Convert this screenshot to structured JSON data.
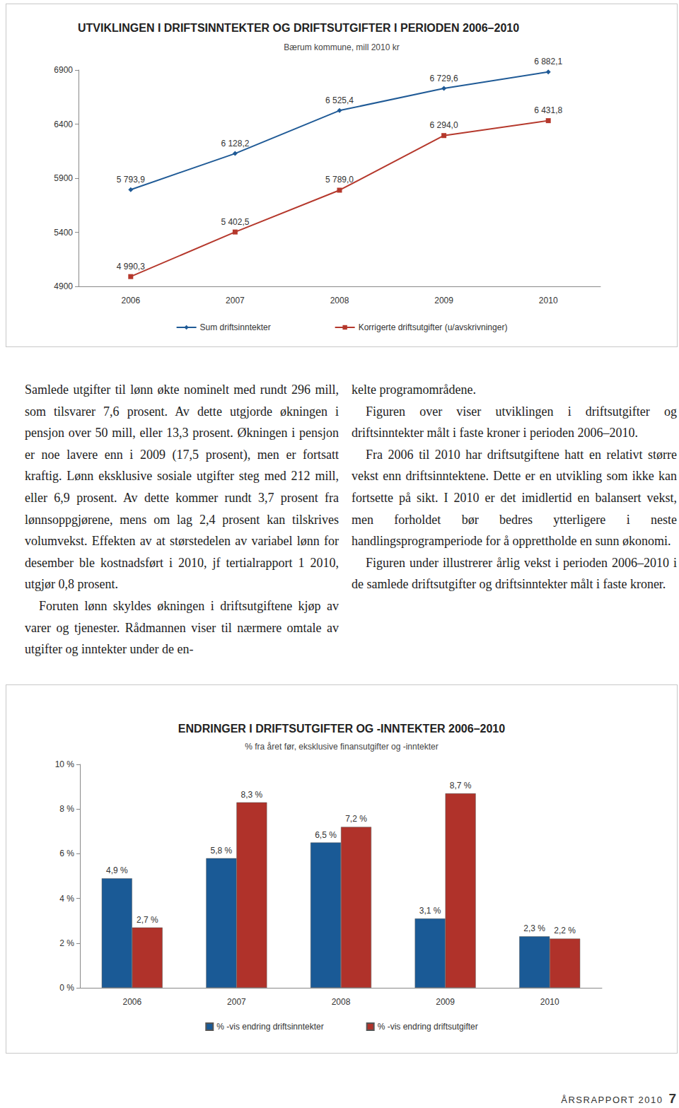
{
  "chart_data": [
    {
      "type": "line",
      "title": "UTVIKLINGEN I DRIFTSINNTEKTER OG DRIFTSUTGIFTER I PERIODEN 2006–2010",
      "subtitle": "Bærum kommune, mill 2010 kr",
      "categories": [
        "2006",
        "2007",
        "2008",
        "2009",
        "2010"
      ],
      "series": [
        {
          "name": "Sum driftsinntekter",
          "color": "#1f5a96",
          "marker": "diamond",
          "values": [
            5793.9,
            6128.2,
            6525.4,
            6729.6,
            6882.1
          ],
          "value_labels": [
            "5 793,9",
            "6 128,2",
            "6 525,4",
            "6 729,6",
            "6 882,1"
          ]
        },
        {
          "name": "Korrigerte driftsutgifter (u/avskrivninger)",
          "color": "#b5382c",
          "marker": "square",
          "values": [
            4990.3,
            5402.5,
            5789.0,
            6294.0,
            6431.8
          ],
          "value_labels": [
            "4 990,3",
            "5 402,5",
            "5 789,0",
            "6 294,0",
            "6 431,8"
          ]
        }
      ],
      "ylim": [
        4900,
        6900
      ],
      "yticks": [
        4900,
        5400,
        5900,
        6400,
        6900
      ],
      "grid": false,
      "legend": "bottom",
      "data_labels": true
    },
    {
      "type": "bar",
      "title": "ENDRINGER I DRIFTSUTGIFTER OG -INNTEKTER 2006–2010",
      "subtitle": "% fra året før, eksklusive finansutgifter og -inntekter",
      "categories": [
        "2006",
        "2007",
        "2008",
        "2009",
        "2010"
      ],
      "series": [
        {
          "name": "% -vis endring driftsinntekter",
          "color": "#1a5a96",
          "values": [
            4.9,
            5.8,
            6.5,
            3.1,
            2.3
          ],
          "value_labels": [
            "4,9 %",
            "5,8 %",
            "6,5 %",
            "3,1 %",
            "2,3 %"
          ]
        },
        {
          "name": "% -vis endring driftsutgifter",
          "color": "#b0322a",
          "values": [
            2.7,
            8.3,
            7.2,
            8.7,
            2.2
          ],
          "value_labels": [
            "2,7 %",
            "8,3 %",
            "7,2 %",
            "8,7 %",
            "2,2 %"
          ]
        }
      ],
      "ylim": [
        0,
        10
      ],
      "yticks": [
        {
          "value": 0,
          "label": "0 %"
        },
        {
          "value": 2,
          "label": "2 %"
        },
        {
          "value": 4,
          "label": "4 %"
        },
        {
          "value": 6,
          "label": "6 %"
        },
        {
          "value": 8,
          "label": "8 %"
        },
        {
          "value": 10,
          "label": "10 %"
        }
      ],
      "grid": false,
      "legend": "bottom",
      "data_labels": true
    }
  ],
  "document": {
    "columns": [
      [
        "Samlede utgifter til lønn økte nominelt med rundt 296 mill, som tilsvarer 7,6 prosent. Av dette utgjorde økningen i pensjon over 50 mill, eller 13,3 prosent. Økningen i pensjon er noe lavere enn i 2009 (17,5 prosent), men er fortsatt kraftig. Lønn eksklusive sosiale utgifter steg med 212 mill, eller 6,9 prosent. Av dette kommer rundt 3,7 prosent fra lønnsoppgjørene, mens om lag 2,4 prosent kan tilskrives volumvekst. Effekten av at størstedelen av variabel lønn for desember ble kostnadsført i 2010, jf tertialrapport 1 2010, utgjør 0,8 prosent.",
        "Foruten lønn skyldes økningen i driftsutgiftene kjøp av varer og tjenester. Rådmannen viser til nærmere omtale av utgifter og inntekter under de en-"
      ],
      [
        "kelte programområdene.",
        "Figuren over viser utviklingen i driftsutgifter og driftsinntekter målt i faste kroner i perioden 2006–2010.",
        "Fra 2006 til 2010 har driftsutgiftene hatt en relativt større vekst enn driftsinntektene. Dette er en utvikling som ikke kan fortsette på sikt. I 2010 er det imidlertid en balansert vekst, men forholdet bør bedres ytterligere i neste handlingsprogramperiode for å opprettholde en sunn økonomi.",
        "Figuren under illustrerer årlig vekst i perioden 2006–2010 i de samlede driftsutgifter og driftsinntekter målt i faste kroner."
      ]
    ],
    "footer": {
      "text": "ÅRSRAPPORT 2010",
      "page": 7
    }
  }
}
